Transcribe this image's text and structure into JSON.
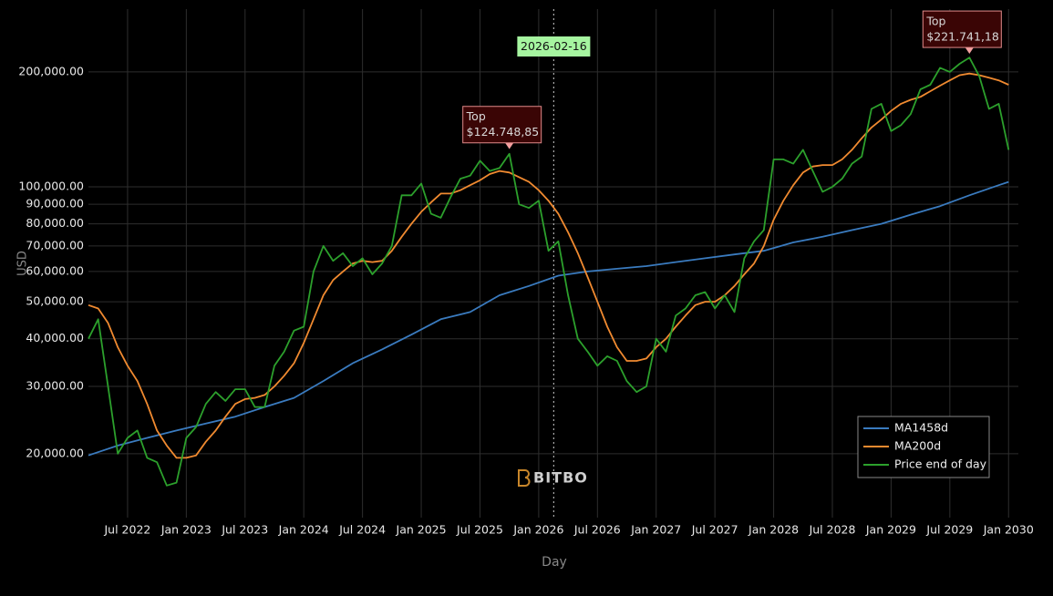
{
  "chart_data": {
    "type": "line",
    "x_axis_label": "Day",
    "y_axis_label": "USD",
    "log_y": true,
    "grid": true,
    "legend_position": "bottom-right",
    "watermark": "BITBO",
    "xlim": [
      "2022-03",
      "2030-02"
    ],
    "xticks": [
      {
        "value": "2022-07",
        "label": "Jul 2022"
      },
      {
        "value": "2023-01",
        "label": "Jan 2023"
      },
      {
        "value": "2023-07",
        "label": "Jul 2023"
      },
      {
        "value": "2024-01",
        "label": "Jan 2024"
      },
      {
        "value": "2024-07",
        "label": "Jul 2024"
      },
      {
        "value": "2025-01",
        "label": "Jan 2025"
      },
      {
        "value": "2025-07",
        "label": "Jul 2025"
      },
      {
        "value": "2026-01",
        "label": "Jan 2026"
      },
      {
        "value": "2026-07",
        "label": "Jul 2026"
      },
      {
        "value": "2027-01",
        "label": "Jan 2027"
      },
      {
        "value": "2027-07",
        "label": "Jul 2027"
      },
      {
        "value": "2028-01",
        "label": "Jan 2028"
      },
      {
        "value": "2028-07",
        "label": "Jul 2028"
      },
      {
        "value": "2029-01",
        "label": "Jan 2029"
      },
      {
        "value": "2029-07",
        "label": "Jul 2029"
      },
      {
        "value": "2030-01",
        "label": "Jan 2030"
      }
    ],
    "ylim": [
      13600,
      292000
    ],
    "yticks": [
      {
        "value": 20000,
        "label": "20,000.00"
      },
      {
        "value": 30000,
        "label": "30,000.00"
      },
      {
        "value": 40000,
        "label": "40,000.00"
      },
      {
        "value": 50000,
        "label": "50,000.00"
      },
      {
        "value": 60000,
        "label": "60,000.00"
      },
      {
        "value": 70000,
        "label": "70,000.00"
      },
      {
        "value": 80000,
        "label": "80,000.00"
      },
      {
        "value": 90000,
        "label": "90,000.00"
      },
      {
        "value": 100000,
        "label": "100,000.00"
      },
      {
        "value": 200000,
        "label": "200,000.00"
      }
    ],
    "x": [
      "2022-03",
      "2022-04",
      "2022-05",
      "2022-06",
      "2022-07",
      "2022-08",
      "2022-09",
      "2022-10",
      "2022-11",
      "2022-12",
      "2023-01",
      "2023-02",
      "2023-03",
      "2023-04",
      "2023-05",
      "2023-06",
      "2023-07",
      "2023-08",
      "2023-09",
      "2023-10",
      "2023-11",
      "2023-12",
      "2024-01",
      "2024-02",
      "2024-03",
      "2024-04",
      "2024-05",
      "2024-06",
      "2024-07",
      "2024-08",
      "2024-09",
      "2024-10",
      "2024-11",
      "2024-12",
      "2025-01",
      "2025-02",
      "2025-03",
      "2025-04",
      "2025-05",
      "2025-06",
      "2025-07",
      "2025-08",
      "2025-09",
      "2025-10",
      "2025-11",
      "2025-12",
      "2026-01",
      "2026-02",
      "2026-03",
      "2026-04",
      "2026-05",
      "2026-06",
      "2026-07",
      "2026-08",
      "2026-09",
      "2026-10",
      "2026-11",
      "2026-12",
      "2027-01",
      "2027-02",
      "2027-03",
      "2027-04",
      "2027-05",
      "2027-06",
      "2027-07",
      "2027-08",
      "2027-09",
      "2027-10",
      "2027-11",
      "2027-12",
      "2028-01",
      "2028-02",
      "2028-03",
      "2028-04",
      "2028-05",
      "2028-06",
      "2028-07",
      "2028-08",
      "2028-09",
      "2028-10",
      "2028-11",
      "2028-12",
      "2029-01",
      "2029-02",
      "2029-03",
      "2029-04",
      "2029-05",
      "2029-06",
      "2029-07",
      "2029-08",
      "2029-09",
      "2029-10",
      "2029-11",
      "2029-12",
      "2030-01"
    ],
    "series": [
      {
        "name": "MA1458d",
        "color": "#3a7bbf",
        "x": [
          "2022-03",
          "2022-06",
          "2022-09",
          "2022-12",
          "2023-03",
          "2023-06",
          "2023-09",
          "2023-12",
          "2024-03",
          "2024-06",
          "2024-09",
          "2024-12",
          "2025-03",
          "2025-06",
          "2025-09",
          "2025-12",
          "2026-03",
          "2026-06",
          "2026-09",
          "2026-12",
          "2027-03",
          "2027-06",
          "2027-09",
          "2027-12",
          "2028-03",
          "2028-06",
          "2028-09",
          "2028-12",
          "2029-03",
          "2029-06",
          "2029-09",
          "2029-12",
          "2030-01"
        ],
        "values": [
          19800,
          21000,
          22000,
          23000,
          24000,
          25000,
          26500,
          28000,
          31000,
          34500,
          37500,
          41000,
          45000,
          47000,
          52000,
          55000,
          58500,
          60000,
          61000,
          62000,
          63500,
          65000,
          66500,
          68000,
          71500,
          74000,
          77000,
          80000,
          84500,
          89000,
          95000,
          101000,
          103000
        ]
      },
      {
        "name": "MA200d",
        "color": "#f08a30",
        "values": [
          49000,
          48000,
          44000,
          38000,
          34000,
          31000,
          27000,
          23000,
          21000,
          19500,
          19500,
          19800,
          21500,
          23000,
          25000,
          27000,
          27800,
          28000,
          28500,
          30000,
          32000,
          34500,
          39000,
          45000,
          52000,
          57000,
          60000,
          63000,
          64000,
          63500,
          64000,
          68000,
          74000,
          80000,
          86000,
          91000,
          96000,
          96000,
          98000,
          101000,
          104000,
          108000,
          110000,
          109000,
          106000,
          103000,
          98000,
          92000,
          85000,
          76000,
          67000,
          58000,
          50000,
          43000,
          38000,
          35000,
          35000,
          35500,
          38000,
          40000,
          43000,
          46000,
          49000,
          50000,
          50000,
          52000,
          55000,
          59000,
          63000,
          70000,
          82000,
          92000,
          101000,
          109000,
          113000,
          114000,
          114000,
          118000,
          125000,
          134000,
          143000,
          150000,
          158000,
          165000,
          169000,
          172000,
          178000,
          184000,
          190000,
          196000,
          198000,
          196000,
          193000,
          190000,
          185000
        ]
      },
      {
        "name": "Price end of day",
        "color": "#2ca02c",
        "values": [
          40000,
          45000,
          30000,
          20000,
          22000,
          23000,
          19500,
          19000,
          16500,
          16800,
          22000,
          23500,
          27000,
          29000,
          27500,
          29500,
          29500,
          26500,
          26500,
          34000,
          37000,
          42000,
          43000,
          60000,
          70000,
          64000,
          67000,
          62000,
          65000,
          59000,
          63000,
          70000,
          95000,
          95000,
          102000,
          85000,
          83000,
          94000,
          105000,
          107000,
          117000,
          110000,
          112000,
          122000,
          90000,
          88000,
          92000,
          68000,
          72000,
          52000,
          40000,
          37000,
          34000,
          36000,
          35000,
          31000,
          29000,
          30000,
          40000,
          37000,
          46000,
          48000,
          52000,
          53000,
          48000,
          52000,
          47000,
          65000,
          72000,
          77000,
          118000,
          118000,
          115000,
          125000,
          110000,
          97000,
          100000,
          105000,
          115000,
          120000,
          160000,
          165000,
          140000,
          145000,
          155000,
          180000,
          185000,
          205000,
          200000,
          210000,
          218000,
          195000,
          160000,
          165000,
          125000
        ]
      }
    ],
    "vline": {
      "x": "2026-02-16",
      "label": "2026-02-16"
    },
    "annotations": [
      {
        "x": "2025-10",
        "y": 124748.85,
        "title": "Top",
        "label": "$124.748,85"
      },
      {
        "x": "2029-09",
        "y": 221741.18,
        "title": "Top",
        "label": "$221.741,18"
      }
    ]
  }
}
